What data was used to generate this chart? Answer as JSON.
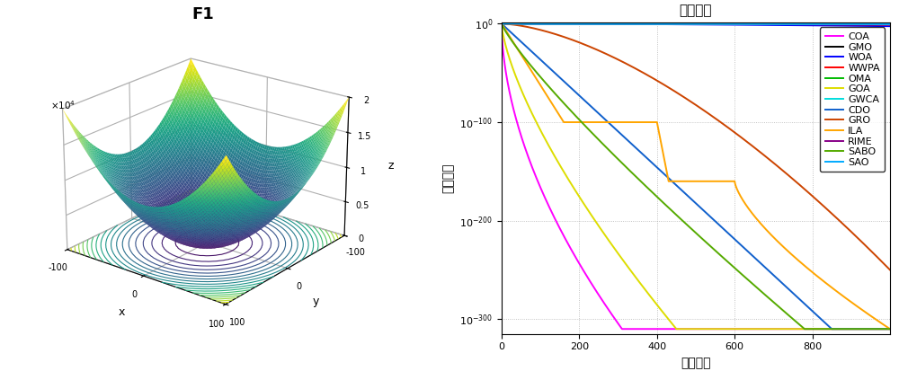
{
  "title_3d": "F1",
  "title_conv": "收敛曲线",
  "xlabel_3d": "x",
  "ylabel_3d": "y",
  "zlabel_3d": "z",
  "xlabel_conv": "迭代次数",
  "ylabel_conv": "适应度値",
  "algorithms": [
    "COA",
    "GMO",
    "WOA",
    "WWPA",
    "OMA",
    "GOA",
    "GWCA",
    "CDO",
    "GRO",
    "ILA",
    "RIME",
    "SABO",
    "SAO"
  ],
  "colors": {
    "COA": "#FF00FF",
    "GMO": "#000000",
    "WOA": "#0000FF",
    "WWPA": "#FF0000",
    "OMA": "#00BB00",
    "GOA": "#DDDD00",
    "GWCA": "#00DDDD",
    "CDO": "#1060CC",
    "GRO": "#CC4400",
    "ILA": "#FFA500",
    "RIME": "#880088",
    "SABO": "#55AA00",
    "SAO": "#00AAFF"
  },
  "bg_color": "#FFFFFF"
}
